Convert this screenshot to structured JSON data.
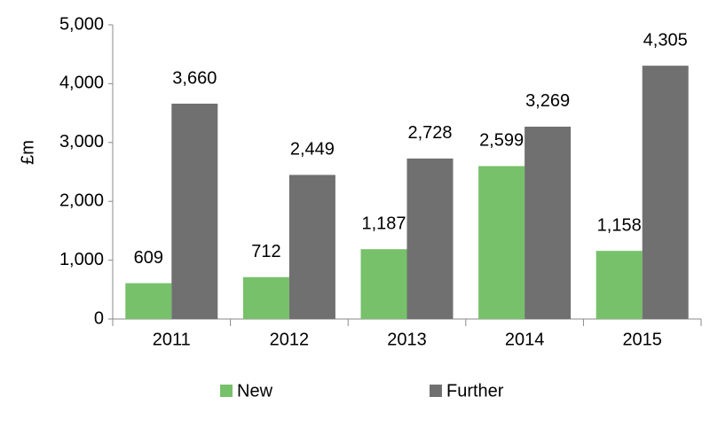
{
  "chart_data": {
    "type": "bar",
    "y_label": "£m",
    "categories": [
      "2011",
      "2012",
      "2013",
      "2014",
      "2015"
    ],
    "series": [
      {
        "name": "New",
        "color": "#77c16a",
        "values": [
          609,
          712,
          1187,
          2599,
          1158
        ],
        "value_labels": [
          "609",
          "712",
          "1,187",
          "2,599",
          "1,158"
        ]
      },
      {
        "name": "Further",
        "color": "#707070",
        "values": [
          3660,
          2449,
          2728,
          3269,
          4305
        ],
        "value_labels": [
          "3,660",
          "2,449",
          "2,728",
          "3,269",
          "4,305"
        ]
      }
    ],
    "ylim": [
      0,
      5000
    ],
    "yticks": [
      0,
      {
        "value": 1000,
        "label": "1,000"
      },
      {
        "value": 2000,
        "label": "2,000"
      },
      {
        "value": 3000,
        "label": "3,000"
      },
      {
        "value": 4000,
        "label": "4,000"
      },
      {
        "value": 5000,
        "label": "5,000"
      }
    ],
    "grid": false,
    "legend": "bottom"
  }
}
